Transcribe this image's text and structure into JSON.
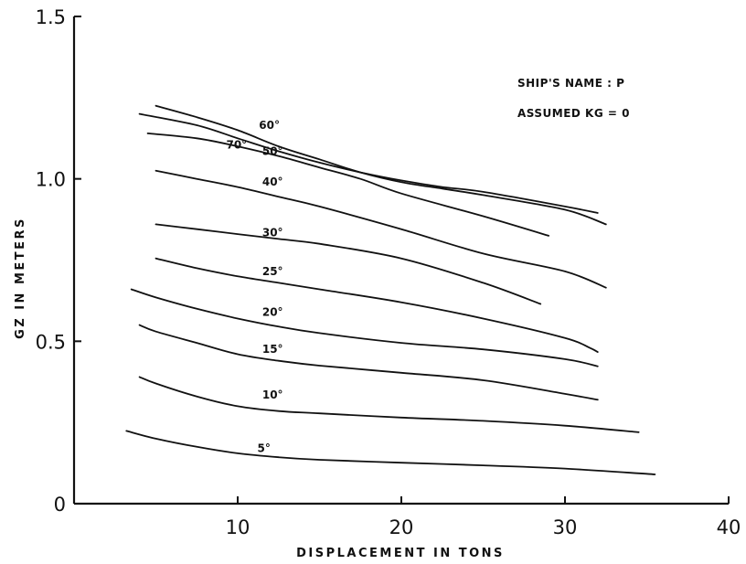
{
  "chart_data": {
    "type": "line",
    "title": "",
    "xlabel": "DISPLACEMENT IN TONS",
    "ylabel": "GZ IN METERS",
    "xlim": [
      0,
      40
    ],
    "ylim": [
      0,
      1.5
    ],
    "xticks": [
      "10",
      "20",
      "30",
      "40"
    ],
    "yticks": [
      "0",
      "0.5",
      "1.0",
      "1.5"
    ],
    "annotations": [
      "SHIP'S NAME : P",
      "ASSUMED KG = 0"
    ],
    "series": [
      {
        "name": "5°",
        "label_at": [
          11.2,
          0.17
        ],
        "x": [
          3.2,
          5,
          7.5,
          10,
          12.5,
          15,
          20,
          25,
          30,
          35.5
        ],
        "y": [
          0.224,
          0.2,
          0.175,
          0.155,
          0.143,
          0.135,
          0.126,
          0.118,
          0.108,
          0.09
        ]
      },
      {
        "name": "10°",
        "label_at": [
          11.5,
          0.335
        ],
        "x": [
          4,
          5,
          7.5,
          10,
          12.5,
          15,
          20,
          25,
          30,
          34.5
        ],
        "y": [
          0.39,
          0.37,
          0.33,
          0.3,
          0.285,
          0.278,
          0.265,
          0.255,
          0.24,
          0.22
        ]
      },
      {
        "name": "15°",
        "label_at": [
          11.5,
          0.475
        ],
        "x": [
          4,
          5,
          7.5,
          10,
          12.5,
          15,
          20,
          25,
          30,
          32
        ],
        "y": [
          0.55,
          0.53,
          0.495,
          0.46,
          0.44,
          0.425,
          0.403,
          0.38,
          0.338,
          0.32
        ]
      },
      {
        "name": "20°",
        "label_at": [
          11.5,
          0.59
        ],
        "x": [
          3.5,
          5,
          7.5,
          10,
          12.5,
          15,
          20,
          25,
          30,
          32
        ],
        "y": [
          0.66,
          0.635,
          0.6,
          0.57,
          0.545,
          0.525,
          0.495,
          0.475,
          0.445,
          0.423
        ]
      },
      {
        "name": "25°",
        "label_at": [
          11.5,
          0.715
        ],
        "x": [
          5,
          7.5,
          10,
          12.5,
          15,
          20,
          25,
          30,
          31.5,
          32
        ],
        "y": [
          0.755,
          0.725,
          0.7,
          0.68,
          0.66,
          0.62,
          0.57,
          0.51,
          0.48,
          0.467
        ]
      },
      {
        "name": "30°",
        "label_at": [
          11.5,
          0.835
        ],
        "x": [
          5,
          7.5,
          10,
          12.5,
          15,
          20,
          25,
          28.5
        ],
        "y": [
          0.86,
          0.845,
          0.83,
          0.815,
          0.8,
          0.755,
          0.68,
          0.615
        ]
      },
      {
        "name": "40°",
        "label_at": [
          11.5,
          0.99
        ],
        "x": [
          5,
          7.5,
          10,
          12.5,
          15,
          20,
          25,
          30,
          32.5
        ],
        "y": [
          1.025,
          1.0,
          0.975,
          0.945,
          0.915,
          0.845,
          0.77,
          0.715,
          0.665
        ]
      },
      {
        "name": "50°",
        "label_at": [
          11.5,
          1.085
        ],
        "x": [
          4.5,
          7.5,
          10,
          12.5,
          15,
          17.5,
          20,
          25,
          29
        ],
        "y": [
          1.14,
          1.125,
          1.1,
          1.07,
          1.035,
          1.0,
          0.955,
          0.885,
          0.825
        ]
      },
      {
        "name": "60°",
        "label_at": [
          11.3,
          1.165
        ],
        "x": [
          4,
          7.5,
          10,
          12.5,
          15,
          17.5,
          20,
          22.5,
          25,
          30,
          32
        ],
        "y": [
          1.2,
          1.165,
          1.125,
          1.085,
          1.05,
          1.02,
          0.995,
          0.975,
          0.96,
          0.915,
          0.895
        ]
      },
      {
        "name": "70°",
        "label_at": [
          9.3,
          1.105
        ],
        "x": [
          5,
          7.5,
          10,
          12.5,
          15,
          17.5,
          20,
          22.5,
          25,
          30,
          32.5
        ],
        "y": [
          1.225,
          1.19,
          1.15,
          1.1,
          1.06,
          1.02,
          0.99,
          0.97,
          0.95,
          0.905,
          0.86
        ]
      }
    ]
  }
}
